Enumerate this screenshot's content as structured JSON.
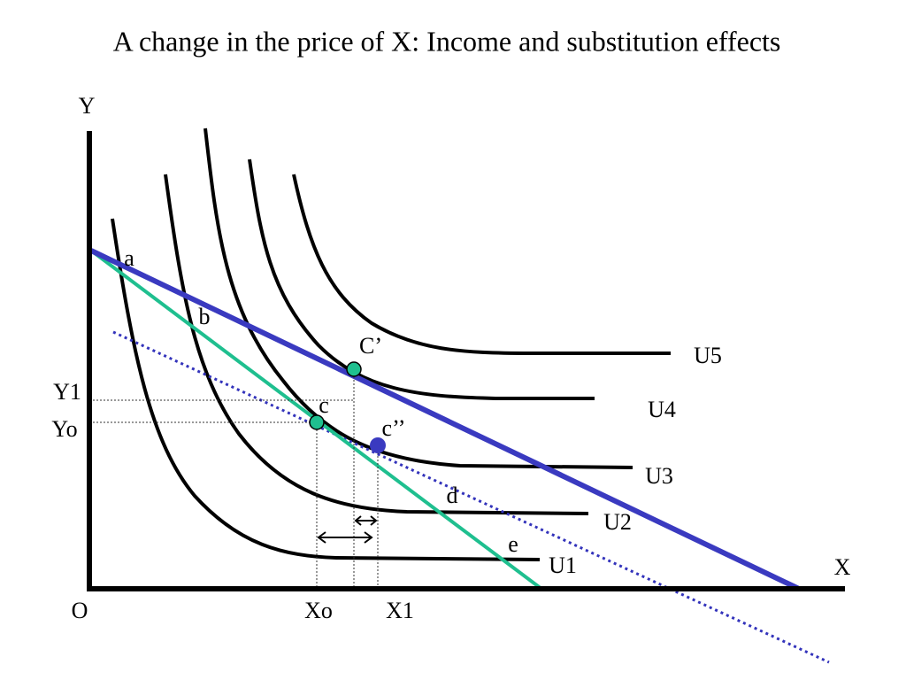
{
  "title": "A change in the price of X: Income and substitution effects",
  "axes": {
    "y": "Y",
    "x": "X",
    "origin": "O",
    "xo": "Xo",
    "x1": "X1",
    "y1": "Y1",
    "yo": "Yo"
  },
  "points": {
    "a": "a",
    "b": "b",
    "c": "c",
    "c_prime": "C’",
    "c_double": "c’’",
    "d": "d",
    "e": "e"
  },
  "curves": [
    "U1",
    "U2",
    "U3",
    "U4",
    "U5"
  ]
}
